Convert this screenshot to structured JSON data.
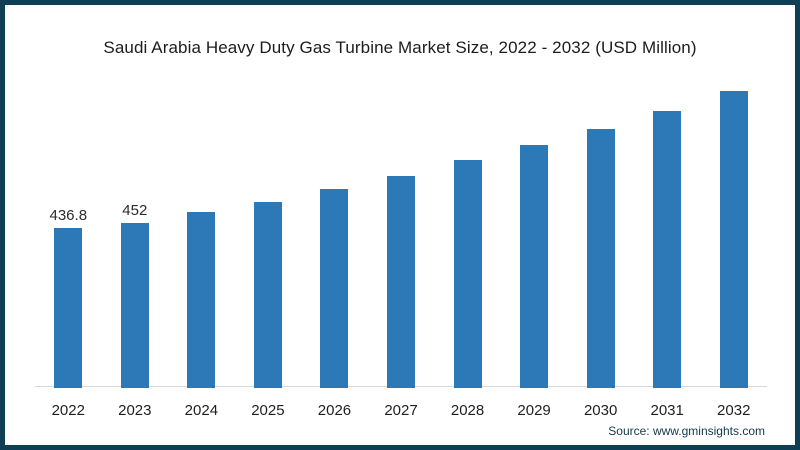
{
  "chart_data": {
    "type": "bar",
    "title": "Saudi Arabia Heavy Duty Gas Turbine Market Size, 2022 - 2032 (USD Million)",
    "categories": [
      "2022",
      "2023",
      "2024",
      "2025",
      "2026",
      "2027",
      "2028",
      "2029",
      "2030",
      "2031",
      "2032"
    ],
    "values": [
      436.8,
      452,
      480,
      508,
      543,
      579,
      622,
      663,
      707,
      756,
      811
    ],
    "bar_labels": [
      "436.8",
      "452",
      "",
      "",
      "",
      "",
      "",
      "",
      "",
      "",
      ""
    ],
    "xlabel": "",
    "ylabel": "",
    "ylim": [
      0,
      880
    ],
    "grid": false,
    "legend": "none",
    "bar_color": "#2d79b8",
    "axis_line_color": "#d9d9d9"
  },
  "source": {
    "text": "Source: www.gminsights.com"
  },
  "colors": {
    "frame_border": "#0e3f55",
    "background": "#ffffff",
    "title_text": "#1c1c1c"
  }
}
